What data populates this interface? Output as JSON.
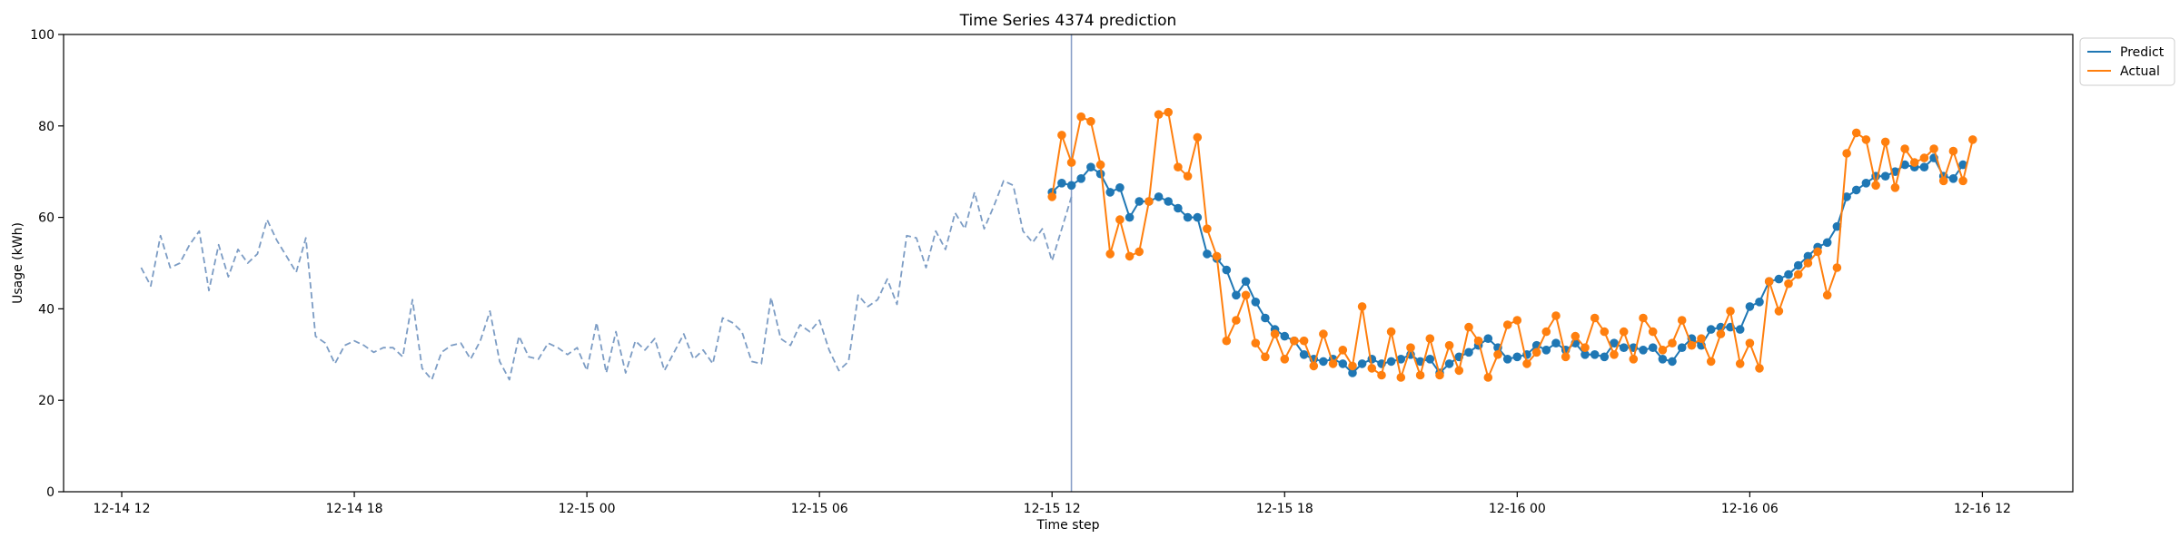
{
  "chart_data": {
    "type": "line",
    "title": "Time Series 4374 prediction",
    "xlabel": "Time step",
    "ylabel": "Usage (kWh)",
    "x_unit": "hour",
    "ylim": [
      0,
      100
    ],
    "xlim": [
      "2024-12-14 10:30",
      "2024-12-16 14:20"
    ],
    "x_ticks": [
      {
        "t": "2024-12-14 12:00",
        "label": "12-14 12"
      },
      {
        "t": "2024-12-14 18:00",
        "label": "12-14 18"
      },
      {
        "t": "2024-12-15 00:00",
        "label": "12-15 00"
      },
      {
        "t": "2024-12-15 06:00",
        "label": "12-15 06"
      },
      {
        "t": "2024-12-15 12:00",
        "label": "12-15 12"
      },
      {
        "t": "2024-12-15 18:00",
        "label": "12-15 18"
      },
      {
        "t": "2024-12-16 00:00",
        "label": "12-16 00"
      },
      {
        "t": "2024-12-16 06:00",
        "label": "12-16 06"
      },
      {
        "t": "2024-12-16 12:00",
        "label": "12-16 12"
      }
    ],
    "y_ticks": [
      0,
      20,
      40,
      60,
      80,
      100
    ],
    "grid": false,
    "legend_position": "top-right, outside plot",
    "forecast_start": "2024-12-15 12:30",
    "series": [
      {
        "key": "history",
        "style": "dashed",
        "color": "#7c9cc4",
        "start": "2024-12-14 12:30",
        "step_minutes": 15,
        "values": [
          49,
          45,
          56,
          49,
          50,
          54,
          57,
          44,
          54,
          47,
          53,
          50,
          52,
          59.5,
          55,
          51.5,
          48,
          55.5,
          34,
          32.5,
          28,
          32,
          33,
          32,
          30.5,
          31.5,
          31.5,
          29.5,
          42,
          27,
          24.5,
          30.5,
          32,
          32.5,
          29,
          33,
          39.5,
          28.5,
          24.5,
          34,
          29.5,
          29,
          32.5,
          31.5,
          30,
          31.5,
          26.5,
          37,
          26,
          35,
          26,
          33,
          31,
          33.5,
          26.5,
          30.5,
          34.5,
          29,
          31,
          28,
          38,
          37,
          35,
          28.5,
          28,
          42.5,
          33.5,
          32,
          36.5,
          35,
          37.5,
          31,
          26.5,
          28.5,
          43,
          40.5,
          42,
          46.5,
          41,
          56,
          55.5,
          49,
          57,
          53,
          61,
          57.5,
          65.5,
          57.5,
          62.5,
          68,
          67,
          57,
          54.5,
          57.5,
          50.5,
          57.5,
          64.5
        ]
      },
      {
        "name": "Predict",
        "color": "#1f77b4",
        "start": "2024-12-15 12:00",
        "step_minutes": 15,
        "values": [
          65.5,
          67.5,
          67,
          68.5,
          71,
          69.5,
          65.5,
          66.5,
          60,
          63.5,
          63.5,
          64.5,
          63.5,
          62,
          60,
          60,
          52,
          51,
          48.5,
          43,
          46,
          41.5,
          38,
          35.5,
          34,
          33,
          30,
          29,
          28.5,
          29,
          28,
          26,
          28,
          29,
          28,
          28.5,
          29,
          30,
          28.5,
          29,
          26,
          28,
          29.5,
          30.5,
          32,
          33.5,
          31.5,
          29,
          29.5,
          30,
          32,
          31,
          32.5,
          31,
          32.5,
          30,
          30,
          29.5,
          32.5,
          31.5,
          31.5,
          31,
          31.5,
          29,
          28.5,
          31.5,
          33.5,
          32,
          35.5,
          36,
          36,
          35.5,
          40.5,
          41.5,
          46,
          46.5,
          47.5,
          49.5,
          51.5,
          53.5,
          54.5,
          58,
          64.5,
          66,
          67.5,
          69,
          69,
          70,
          71.5,
          71,
          71,
          73,
          69,
          68.5,
          71.5
        ]
      },
      {
        "name": "Actual",
        "color": "#ff7f0e",
        "start": "2024-12-15 12:00",
        "step_minutes": 15,
        "values": [
          64.5,
          78,
          72,
          82,
          81,
          71.5,
          52,
          59.5,
          51.5,
          52.5,
          63.5,
          82.5,
          83,
          71,
          69,
          77.5,
          57.5,
          51.5,
          33,
          37.5,
          43,
          32.5,
          29.5,
          34.5,
          29,
          33,
          33,
          27.5,
          34.5,
          28,
          31,
          27.5,
          40.5,
          27,
          25.5,
          35,
          25,
          31.5,
          25.5,
          33.5,
          25.5,
          32,
          26.5,
          36,
          33,
          25,
          30,
          36.5,
          37.5,
          28,
          30.5,
          35,
          38.5,
          29.5,
          34,
          31.5,
          38,
          35,
          30,
          35,
          29,
          38,
          35,
          31,
          32.5,
          37.5,
          32,
          33.5,
          28.5,
          34.5,
          39.5,
          28,
          32.5,
          27,
          46,
          39.5,
          45.5,
          47.5,
          50,
          52.5,
          43,
          49,
          74,
          78.5,
          77,
          67,
          76.5,
          66.5,
          75,
          72,
          73,
          75,
          68,
          74.5,
          68,
          77
        ]
      }
    ]
  }
}
